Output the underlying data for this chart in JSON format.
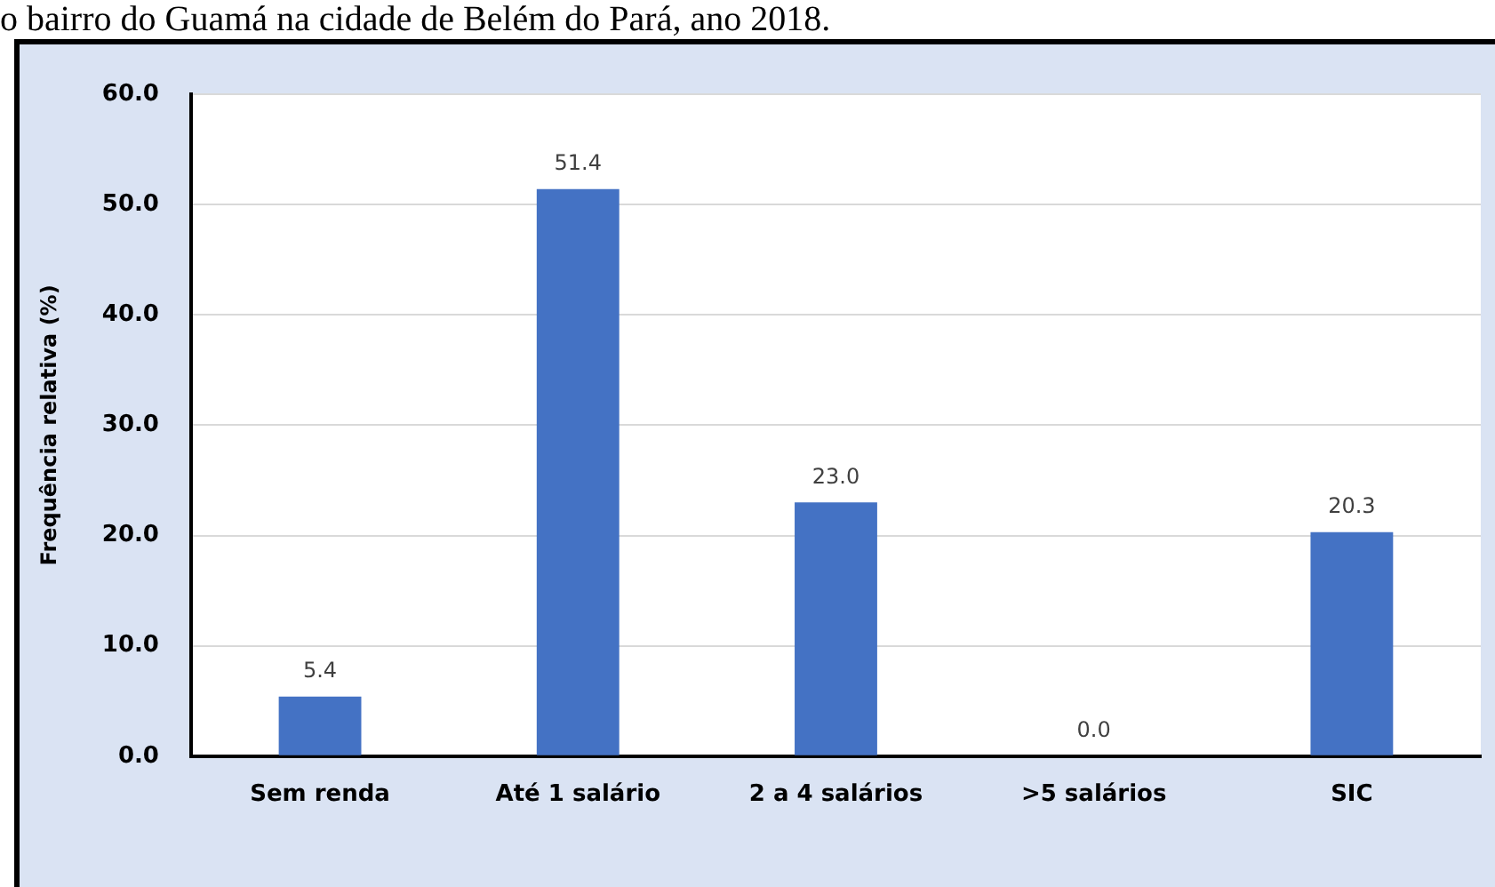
{
  "chart_data": {
    "type": "bar",
    "title": "o bairro do Guamá na cidade de Belém do Pará, ano 2018.",
    "ylabel": "Frequência relativa (%)",
    "categories": [
      "Sem renda",
      "Até 1 salário",
      "2 a 4 salários",
      ">5 salários",
      "SIC"
    ],
    "values": [
      5.4,
      51.4,
      23.0,
      0.0,
      20.3
    ],
    "value_labels": [
      "5.4",
      "51.4",
      "23.0",
      "0.0",
      "20.3"
    ],
    "color": "#4472c4",
    "ylim": [
      0,
      60
    ],
    "yticks": [
      {
        "value": 0,
        "label": "0.0"
      },
      {
        "value": 10,
        "label": "10.0"
      },
      {
        "value": 20,
        "label": "20.0"
      },
      {
        "value": 30,
        "label": "30.0"
      },
      {
        "value": 40,
        "label": "40.0"
      },
      {
        "value": 50,
        "label": "50.0"
      },
      {
        "value": 60,
        "label": "60.0"
      }
    ],
    "grid": "y"
  }
}
